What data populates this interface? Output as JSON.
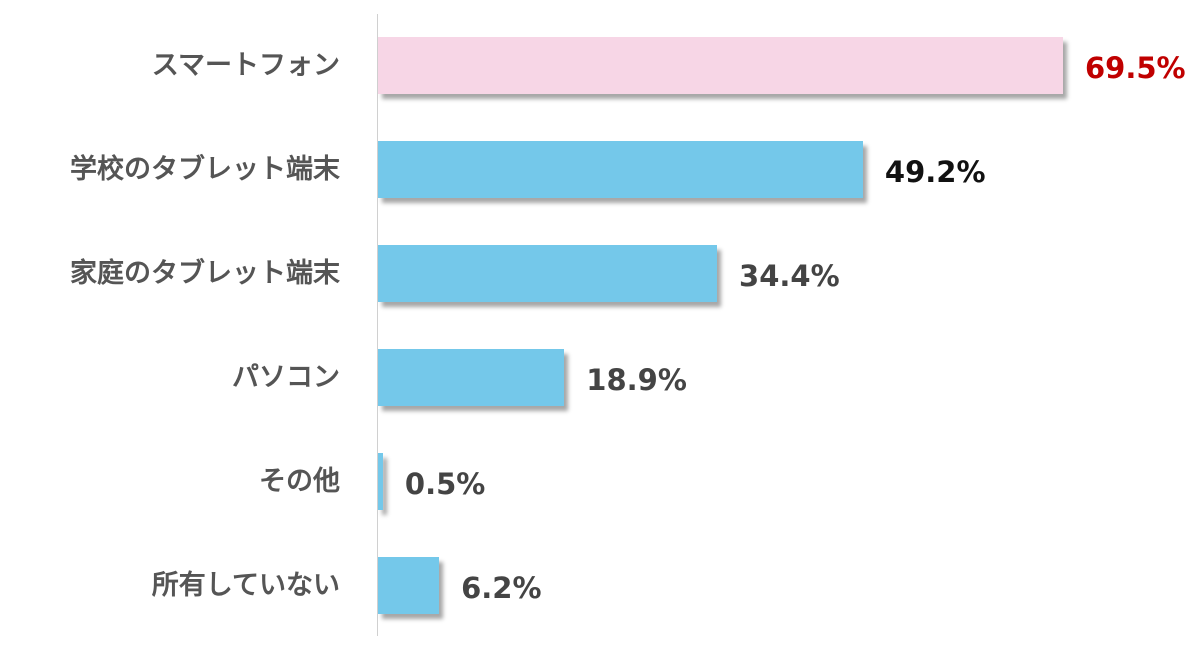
{
  "chart_data": {
    "type": "bar",
    "orientation": "horizontal",
    "title": "",
    "xlabel": "",
    "ylabel": "",
    "categories": [
      "スマートフォン",
      "学校のタブレット端末",
      "家庭のタブレット端末",
      "パソコン",
      "その他",
      "所有していない"
    ],
    "values": [
      69.5,
      49.2,
      34.4,
      18.9,
      0.5,
      6.2
    ],
    "value_labels": [
      "69.5%",
      "49.2%",
      "34.4%",
      "18.9%",
      "0.5%",
      "6.2%"
    ],
    "unit": "%",
    "xlim": [
      0,
      70
    ],
    "grid": false,
    "legend": null,
    "colors": {
      "highlight_bar": "#f7d6e6",
      "default_bar": "#74c8ea",
      "highlight_label": "#c00000",
      "second_label": "#111111",
      "default_label": "#444444",
      "category_label": "#555555"
    }
  }
}
